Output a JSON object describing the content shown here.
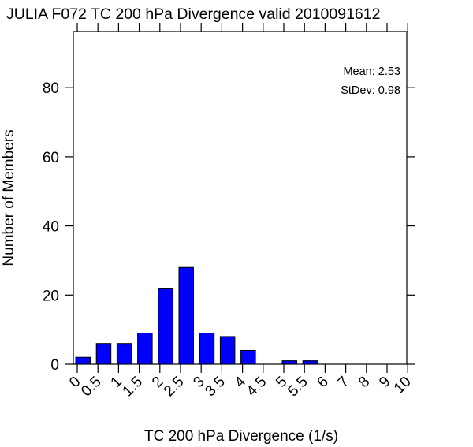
{
  "chart_data": {
    "type": "bar",
    "title": "JULIA F072 TC 200 hPa Divergence valid 2010091612",
    "xlabel": "TC 200 hPa Divergence (1/s)",
    "ylabel": "Number of Members",
    "ylim": [
      0,
      98
    ],
    "yticks": [
      0,
      20,
      40,
      60,
      80
    ],
    "grid": false,
    "bar_color": "#0000ff",
    "categories": [
      "0",
      "0.5",
      "1",
      "1.5",
      "2",
      "2.5",
      "3",
      "3.5",
      "4",
      "4.5",
      "5",
      "5.5",
      "6",
      "7",
      "8",
      "9",
      "10"
    ],
    "values": [
      2,
      6,
      6,
      9,
      22,
      28,
      9,
      8,
      4,
      0,
      1,
      1,
      0,
      0,
      0,
      0,
      0
    ],
    "annotations": {
      "mean": "Mean: 2.53",
      "stdev": "StDev: 0.98"
    }
  }
}
